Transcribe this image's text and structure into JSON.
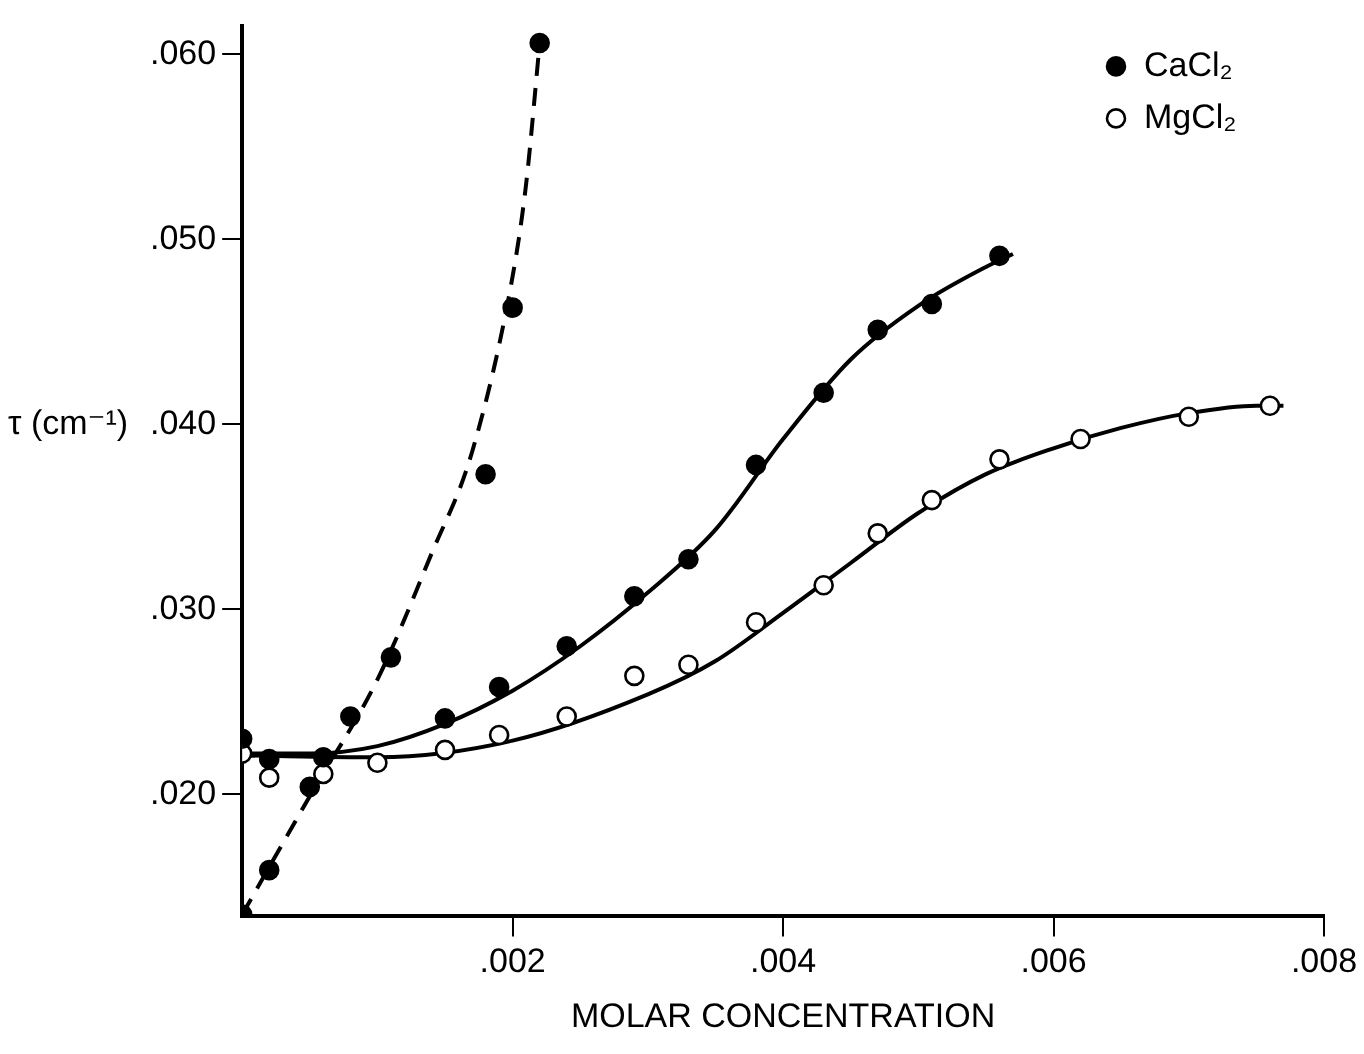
{
  "chart_data": {
    "type": "scatter",
    "xlabel": "MOLAR CONCENTRATION",
    "ylabel": "τ (cm⁻¹)",
    "xlim": [
      0,
      0.008
    ],
    "ylim": [
      0.0134,
      0.0615
    ],
    "xticks": [
      {
        "value": 0.002,
        "label": ".002"
      },
      {
        "value": 0.004,
        "label": ".004"
      },
      {
        "value": 0.006,
        "label": ".006"
      },
      {
        "value": 0.008,
        "label": ".008"
      }
    ],
    "yticks": [
      {
        "value": 0.02,
        "label": ".020"
      },
      {
        "value": 0.03,
        "label": ".030"
      },
      {
        "value": 0.04,
        "label": ".040"
      },
      {
        "value": 0.05,
        "label": ".050"
      },
      {
        "value": 0.06,
        "label": ".060"
      }
    ],
    "grid": false,
    "legend": "top right",
    "marker": "circle",
    "series": [
      {
        "name": "CaCl₂",
        "color": "#000000",
        "x": [
          0,
          0.0002,
          0.0006,
          0.0015,
          0.0019,
          0.0024,
          0.0029,
          0.0033,
          0.0038,
          0.0043,
          0.0047,
          0.0051,
          0.0056
        ],
        "values": [
          0.023,
          0.0219,
          0.022,
          0.0241,
          0.0258,
          0.028,
          0.0307,
          0.0327,
          0.0378,
          0.0417,
          0.0451,
          0.0465,
          0.0491
        ]
      },
      {
        "name": "MgCl₂",
        "color": "#ffffff",
        "x": [
          0,
          0.0002,
          0.0006,
          0.001,
          0.0015,
          0.0019,
          0.0024,
          0.0029,
          0.0033,
          0.0038,
          0.0043,
          0.0047,
          0.0051,
          0.0056,
          0.0062,
          0.007,
          0.0076
        ],
        "values": [
          0.0222,
          0.0209,
          0.0211,
          0.0217,
          0.0224,
          0.0232,
          0.0242,
          0.0264,
          0.027,
          0.0293,
          0.0313,
          0.0341,
          0.0359,
          0.0381,
          0.0392,
          0.0404,
          0.041
        ]
      },
      {
        "color": "#000000",
        "x": [
          0,
          0.0002,
          0.0005,
          0.0008,
          0.0011,
          0.0018,
          0.002,
          0.0022
        ],
        "values": [
          0.0135,
          0.0159,
          0.0204,
          0.0242,
          0.0274,
          0.0373,
          0.0463,
          0.0606
        ]
      },
      {
        "type": "line",
        "marker": "none",
        "color": "#000000",
        "line_style": "solid",
        "x": [
          0,
          0.0005,
          0.001,
          0.0015,
          0.002,
          0.0025,
          0.003,
          0.0035,
          0.004,
          0.0045,
          0.005,
          0.0055,
          0.0057
        ],
        "values": [
          0.0222,
          0.0222,
          0.0226,
          0.0238,
          0.0256,
          0.028,
          0.0309,
          0.0343,
          0.0392,
          0.0435,
          0.0464,
          0.0485,
          0.0492
        ]
      },
      {
        "type": "line",
        "marker": "none",
        "color": "#000000",
        "line_style": "solid",
        "x": [
          0,
          0.001,
          0.002,
          0.003,
          0.0035,
          0.004,
          0.0045,
          0.005,
          0.0055,
          0.006,
          0.0065,
          0.007,
          0.0075,
          0.0077
        ],
        "values": [
          0.0221,
          0.022,
          0.0229,
          0.0254,
          0.0272,
          0.0298,
          0.0325,
          0.0352,
          0.0373,
          0.0387,
          0.0398,
          0.0406,
          0.041,
          0.041
        ]
      },
      {
        "type": "line",
        "marker": "none",
        "color": "#000000",
        "line_style": "dashed",
        "x": [
          0,
          0.0005,
          0.001,
          0.0014,
          0.0017,
          0.002,
          0.0021,
          0.0022
        ],
        "values": [
          0.0135,
          0.0199,
          0.0262,
          0.033,
          0.0385,
          0.048,
          0.053,
          0.0606
        ]
      }
    ]
  }
}
